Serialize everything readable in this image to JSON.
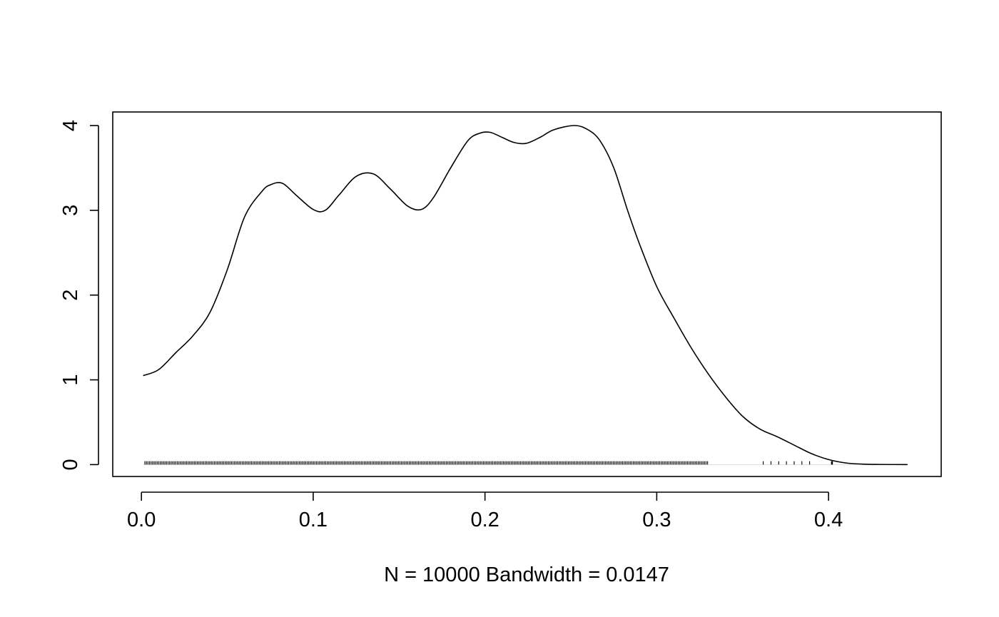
{
  "chart_data": {
    "type": "line",
    "title": "",
    "xlabel": "N = 10000   Bandwidth = 0.0147",
    "ylabel": "",
    "xlim": [
      -0.0167,
      0.4656
    ],
    "ylim": [
      -0.14,
      4.16
    ],
    "x_ticks": [
      0.0,
      0.1,
      0.2,
      0.3,
      0.4
    ],
    "x_tick_labels": [
      "0.0",
      "0.1",
      "0.2",
      "0.3",
      "0.4"
    ],
    "y_ticks": [
      0,
      1,
      2,
      3,
      4
    ],
    "y_tick_labels": [
      "0",
      "1",
      "2",
      "3",
      "4"
    ],
    "grid": false,
    "legend": "none",
    "series": [
      {
        "x": [
          0.001,
          0.01,
          0.02,
          0.03,
          0.04,
          0.05,
          0.06,
          0.07,
          0.075,
          0.082,
          0.09,
          0.1,
          0.107,
          0.115,
          0.125,
          0.135,
          0.145,
          0.155,
          0.163,
          0.17,
          0.18,
          0.19,
          0.197,
          0.203,
          0.21,
          0.217,
          0.224,
          0.232,
          0.24,
          0.252,
          0.26,
          0.267,
          0.275,
          0.283,
          0.29,
          0.3,
          0.31,
          0.32,
          0.33,
          0.34,
          0.35,
          0.36,
          0.37,
          0.38,
          0.39,
          0.4,
          0.41,
          0.42,
          0.43,
          0.446
        ],
        "y": [
          1.05,
          1.12,
          1.32,
          1.52,
          1.8,
          2.3,
          2.92,
          3.22,
          3.3,
          3.32,
          3.18,
          3.01,
          3.0,
          3.18,
          3.4,
          3.43,
          3.25,
          3.05,
          3.01,
          3.15,
          3.5,
          3.82,
          3.91,
          3.92,
          3.86,
          3.8,
          3.79,
          3.86,
          3.95,
          4.0,
          3.95,
          3.82,
          3.5,
          3.0,
          2.6,
          2.1,
          1.73,
          1.38,
          1.07,
          0.8,
          0.57,
          0.42,
          0.33,
          0.23,
          0.13,
          0.06,
          0.02,
          0.006,
          0.002,
          0.0
        ]
      }
    ],
    "rug": {
      "x_min": 0.0,
      "x_max": 0.39,
      "outlier_x": 0.402,
      "height": 0.04
    }
  }
}
